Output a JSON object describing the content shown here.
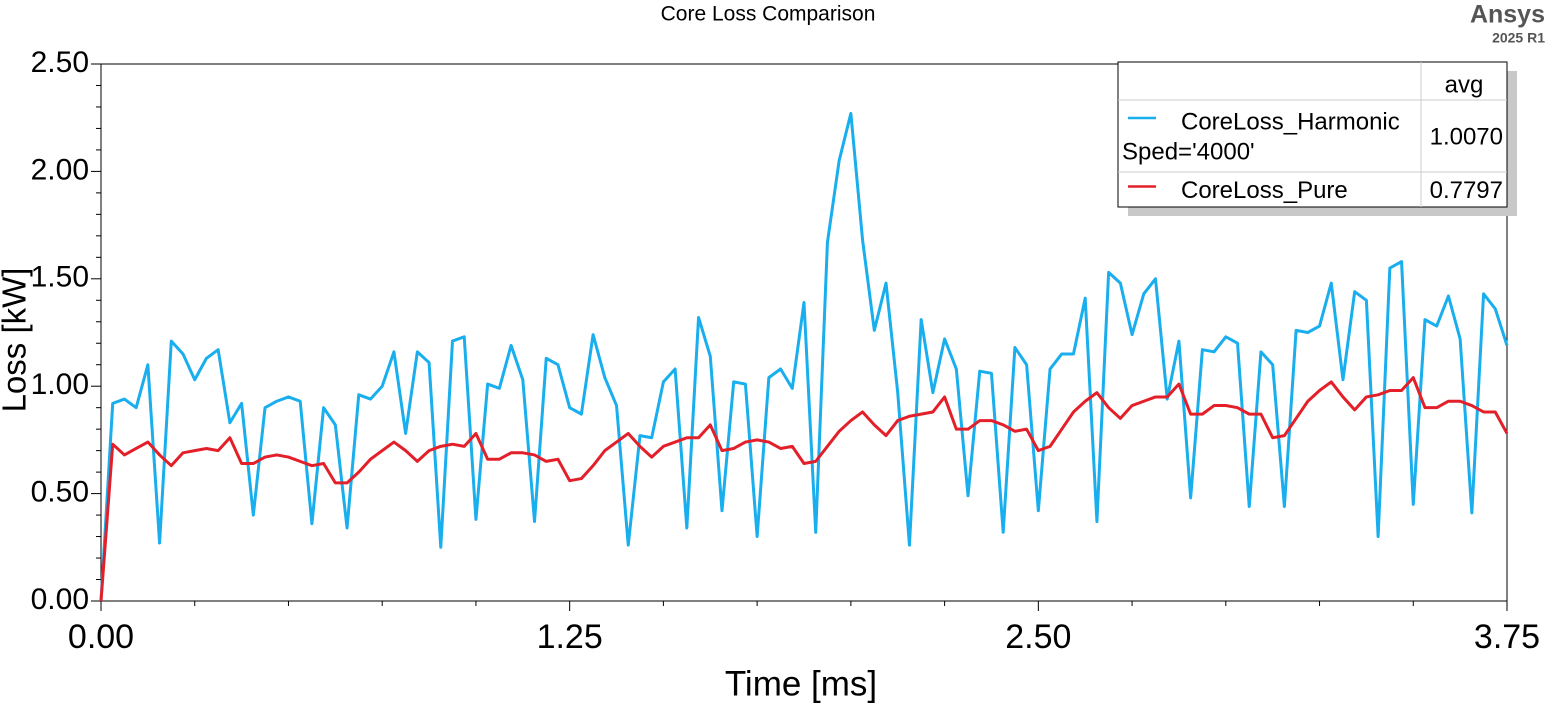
{
  "chart_data": {
    "type": "line",
    "title": "Core Loss Comparison",
    "watermark": {
      "brand": "Ansys",
      "version": "2025 R1"
    },
    "xlabel": "Time [ms]",
    "ylabel": "Loss [kW]",
    "xlim": [
      0,
      3.75
    ],
    "ylim": [
      0,
      2.5
    ],
    "xticks": [
      {
        "value": 0,
        "label": "0.00"
      },
      {
        "value": 1.25,
        "label": "1.25"
      },
      {
        "value": 2.5,
        "label": "2.50"
      },
      {
        "value": 3.75,
        "label": "3.75"
      }
    ],
    "yticks": [
      {
        "value": 0,
        "label": "0.00"
      },
      {
        "value": 0.5,
        "label": "0.50"
      },
      {
        "value": 1,
        "label": "1.00"
      },
      {
        "value": 1.5,
        "label": "1.50"
      },
      {
        "value": 2,
        "label": "2.00"
      },
      {
        "value": 2.5,
        "label": "2.50"
      }
    ],
    "xminorticks": [
      0.25,
      0.5,
      0.75,
      1,
      1.5,
      1.75,
      2,
      2.25,
      2.75,
      3,
      3.25,
      3.5
    ],
    "yminorticks": [
      0.1,
      0.2,
      0.3,
      0.4,
      0.6,
      0.7,
      0.8,
      0.9,
      1.1,
      1.2,
      1.3,
      1.4,
      1.6,
      1.7,
      1.8,
      1.9,
      2.1,
      2.2,
      2.3,
      2.4
    ],
    "legend_column": "avg",
    "x": [
      0,
      0.03125,
      0.0625,
      0.09375,
      0.125,
      0.15625,
      0.1875,
      0.21875,
      0.25,
      0.28125,
      0.3125,
      0.34375,
      0.375,
      0.40625,
      0.4375,
      0.46875,
      0.5,
      0.53125,
      0.5625,
      0.59375,
      0.625,
      0.65625,
      0.6875,
      0.71875,
      0.75,
      0.78125,
      0.8125,
      0.84375,
      0.875,
      0.90625,
      0.9375,
      0.96875,
      1,
      1.03125,
      1.0625,
      1.09375,
      1.125,
      1.15625,
      1.1875,
      1.21875,
      1.25,
      1.28125,
      1.3125,
      1.34375,
      1.375,
      1.40625,
      1.4375,
      1.46875,
      1.5,
      1.53125,
      1.5625,
      1.59375,
      1.625,
      1.65625,
      1.6875,
      1.71875,
      1.75,
      1.78125,
      1.8125,
      1.84375,
      1.875,
      1.90625,
      1.9375,
      1.96875,
      2,
      2.03125,
      2.0625,
      2.09375,
      2.125,
      2.15625,
      2.1875,
      2.21875,
      2.25,
      2.28125,
      2.3125,
      2.34375,
      2.375,
      2.40625,
      2.4375,
      2.46875,
      2.5,
      2.53125,
      2.5625,
      2.59375,
      2.625,
      2.65625,
      2.6875,
      2.71875,
      2.75,
      2.78125,
      2.8125,
      2.84375,
      2.875,
      2.90625,
      2.9375,
      2.96875,
      3,
      3.03125,
      3.0625,
      3.09375,
      3.125,
      3.15625,
      3.1875,
      3.21875,
      3.25,
      3.28125,
      3.3125,
      3.34375,
      3.375,
      3.40625,
      3.4375,
      3.46875,
      3.5,
      3.53125,
      3.5625,
      3.59375,
      3.625,
      3.65625,
      3.6875,
      3.71875,
      3.75
    ],
    "series": [
      {
        "name": "CoreLoss_Harmonic",
        "legend_detail": "Sped='4000'",
        "color": "#19aeed",
        "avg": 1.007,
        "avg_label": "1.0070",
        "values": [
          0,
          0.92,
          0.94,
          0.9,
          1.1,
          0.27,
          1.21,
          1.15,
          1.03,
          1.13,
          1.17,
          0.83,
          0.92,
          0.4,
          0.9,
          0.93,
          0.95,
          0.93,
          0.36,
          0.9,
          0.82,
          0.34,
          0.96,
          0.94,
          1.0,
          1.16,
          0.78,
          1.16,
          1.11,
          0.25,
          1.21,
          1.23,
          0.38,
          1.01,
          0.99,
          1.19,
          1.03,
          0.37,
          1.13,
          1.1,
          0.9,
          0.87,
          1.24,
          1.04,
          0.91,
          0.26,
          0.77,
          0.76,
          1.02,
          1.08,
          0.34,
          1.32,
          1.14,
          0.42,
          1.02,
          1.01,
          0.3,
          1.04,
          1.08,
          0.99,
          1.39,
          0.32,
          1.67,
          2.05,
          2.27,
          1.68,
          1.26,
          1.48,
          0.97,
          0.26,
          1.31,
          0.97,
          1.22,
          1.08,
          0.49,
          1.07,
          1.06,
          0.32,
          1.18,
          1.1,
          0.42,
          1.08,
          1.15,
          1.15,
          1.41,
          0.37,
          1.53,
          1.48,
          1.24,
          1.43,
          1.5,
          0.94,
          1.21,
          0.48,
          1.17,
          1.16,
          1.23,
          1.2,
          0.44,
          1.16,
          1.1,
          0.44,
          1.26,
          1.25,
          1.28,
          1.48,
          1.03,
          1.44,
          1.4,
          0.3,
          1.55,
          1.58,
          0.45,
          1.31,
          1.28,
          1.42,
          1.22,
          0.41,
          1.43,
          1.36,
          1.19
        ]
      },
      {
        "name": "CoreLoss_Pure",
        "color": "#e3202a",
        "avg": 0.7797,
        "avg_label": "0.7797",
        "values": [
          0,
          0.73,
          0.68,
          0.71,
          0.74,
          0.68,
          0.63,
          0.69,
          0.7,
          0.71,
          0.7,
          0.76,
          0.64,
          0.64,
          0.67,
          0.68,
          0.67,
          0.65,
          0.63,
          0.64,
          0.55,
          0.55,
          0.6,
          0.66,
          0.7,
          0.74,
          0.7,
          0.65,
          0.7,
          0.72,
          0.73,
          0.72,
          0.78,
          0.66,
          0.66,
          0.69,
          0.69,
          0.68,
          0.65,
          0.66,
          0.56,
          0.57,
          0.63,
          0.7,
          0.74,
          0.78,
          0.72,
          0.67,
          0.72,
          0.74,
          0.76,
          0.76,
          0.82,
          0.7,
          0.71,
          0.74,
          0.75,
          0.74,
          0.71,
          0.72,
          0.64,
          0.65,
          0.72,
          0.79,
          0.84,
          0.88,
          0.82,
          0.77,
          0.84,
          0.86,
          0.87,
          0.88,
          0.95,
          0.8,
          0.8,
          0.84,
          0.84,
          0.82,
          0.79,
          0.8,
          0.7,
          0.72,
          0.8,
          0.88,
          0.93,
          0.97,
          0.9,
          0.85,
          0.91,
          0.93,
          0.95,
          0.95,
          1.01,
          0.87,
          0.87,
          0.91,
          0.91,
          0.9,
          0.87,
          0.87,
          0.76,
          0.77,
          0.85,
          0.93,
          0.98,
          1.02,
          0.95,
          0.89,
          0.95,
          0.96,
          0.98,
          0.98,
          1.04,
          0.9,
          0.9,
          0.93,
          0.93,
          0.91,
          0.88,
          0.88,
          0.78
        ]
      }
    ]
  }
}
